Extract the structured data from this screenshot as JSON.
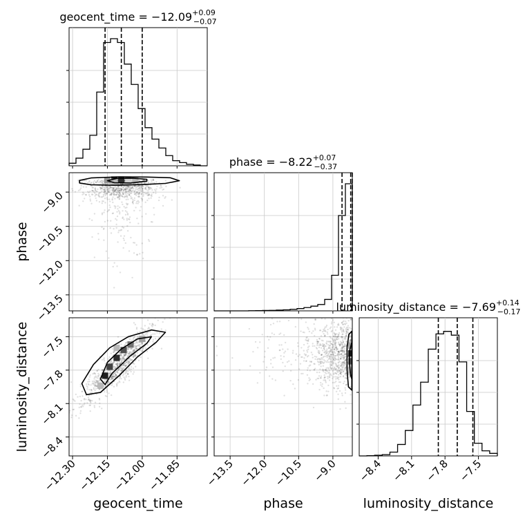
{
  "chart_data": {
    "type": "corner",
    "parameters": [
      {
        "name": "geocent_time",
        "axis_label": "geocent_time",
        "title": {
          "prefix": "geocent_time = ",
          "value": "−12.09",
          "upper": "+0.09",
          "lower": "−0.07"
        },
        "range": [
          -12.315,
          -11.72
        ],
        "ticks": [
          -12.3,
          -12.15,
          -12.0,
          -11.85
        ],
        "tick_labels": [
          "−12.30",
          "−12.15",
          "−12.00",
          "−11.85"
        ],
        "quantiles": [
          -12.16,
          -12.09,
          -12.0
        ],
        "hist": [
          0.02,
          0.06,
          0.13,
          0.24,
          0.58,
          0.97,
          1.0,
          0.97,
          0.8,
          0.64,
          0.45,
          0.3,
          0.21,
          0.14,
          0.08,
          0.04,
          0.025,
          0.012,
          0.006,
          0.0
        ]
      },
      {
        "name": "phase",
        "axis_label": "phase",
        "title": {
          "prefix": "phase = ",
          "value": "−8.22",
          "upper": "+0.07",
          "lower": "−0.37"
        },
        "range": [
          -14.2,
          -8.15
        ],
        "ticks": [
          -13.5,
          -12.0,
          -10.5,
          -9.0
        ],
        "tick_labels": [
          "−13.5",
          "−12.0",
          "−10.5",
          "−9.0"
        ],
        "quantiles": [
          -8.6,
          -8.22,
          -8.15
        ],
        "hist": [
          0.0,
          0.0,
          0.0,
          0.0,
          0.0,
          0.001,
          0.002,
          0.003,
          0.004,
          0.006,
          0.008,
          0.012,
          0.018,
          0.026,
          0.037,
          0.05,
          0.09,
          0.28,
          0.75,
          1.0
        ]
      },
      {
        "name": "luminosity_distance",
        "axis_label": "luminosity_distance",
        "title": {
          "prefix": "luminosity_distance = ",
          "value": "−7.69",
          "upper": "+0.14",
          "lower": "−0.17"
        },
        "range": [
          -8.57,
          -7.33
        ],
        "ticks": [
          -8.4,
          -8.1,
          -7.8,
          -7.5
        ],
        "tick_labels": [
          "−8.4",
          "−8.1",
          "−7.8",
          "−7.5"
        ],
        "quantiles": [
          -7.86,
          -7.69,
          -7.55
        ],
        "hist": [
          0.0,
          0.002,
          0.005,
          0.01,
          0.03,
          0.09,
          0.2,
          0.4,
          0.58,
          0.84,
          0.96,
          0.98,
          0.95,
          0.74,
          0.35,
          0.1,
          0.04,
          0.02
        ]
      }
    ],
    "contours": [
      {
        "row": 1,
        "col": 0,
        "x": "geocent_time",
        "y": "phase",
        "outer": [
          [
            -12.27,
            -8.49
          ],
          [
            -12.22,
            -8.38
          ],
          [
            -12.1,
            -8.33
          ],
          [
            -11.98,
            -8.34
          ],
          [
            -11.88,
            -8.37
          ],
          [
            -11.84,
            -8.5
          ],
          [
            -11.9,
            -8.62
          ],
          [
            -12.0,
            -8.67
          ],
          [
            -12.12,
            -8.7
          ],
          [
            -12.22,
            -8.68
          ],
          [
            -12.27,
            -8.6
          ]
        ],
        "inner": [
          [
            -12.15,
            -8.5
          ],
          [
            -12.11,
            -8.4
          ],
          [
            -12.04,
            -8.39
          ],
          [
            -11.98,
            -8.44
          ],
          [
            -11.98,
            -8.52
          ],
          [
            -12.05,
            -8.6
          ],
          [
            -12.12,
            -8.59
          ]
        ],
        "bins": [
          [
            -12.12,
            -8.45,
            1.0
          ],
          [
            -12.09,
            -8.45,
            0.9
          ],
          [
            -12.06,
            -8.45,
            0.6
          ],
          [
            -12.03,
            -8.47,
            0.3
          ],
          [
            -12.15,
            -8.47,
            0.45
          ],
          [
            -12.12,
            -8.55,
            0.3
          ],
          [
            -12.06,
            -8.55,
            0.2
          ]
        ]
      },
      {
        "row": 2,
        "col": 0,
        "x": "geocent_time",
        "y": "luminosity_distance",
        "outer": [
          [
            -12.26,
            -7.92
          ],
          [
            -12.21,
            -7.75
          ],
          [
            -12.14,
            -7.6
          ],
          [
            -12.06,
            -7.5
          ],
          [
            -11.96,
            -7.44
          ],
          [
            -11.9,
            -7.46
          ],
          [
            -11.94,
            -7.55
          ],
          [
            -12.02,
            -7.68
          ],
          [
            -12.1,
            -7.85
          ],
          [
            -12.18,
            -8.0
          ],
          [
            -12.24,
            -8.02
          ]
        ],
        "inner": [
          [
            -12.18,
            -7.88
          ],
          [
            -12.15,
            -7.73
          ],
          [
            -12.09,
            -7.61
          ],
          [
            -12.02,
            -7.52
          ],
          [
            -11.96,
            -7.5
          ],
          [
            -11.98,
            -7.56
          ],
          [
            -12.05,
            -7.67
          ],
          [
            -12.13,
            -7.83
          ],
          [
            -12.16,
            -7.93
          ]
        ],
        "bins": [
          [
            -12.16,
            -7.85,
            0.95
          ],
          [
            -12.14,
            -7.77,
            0.8
          ],
          [
            -12.11,
            -7.69,
            0.9
          ],
          [
            -12.08,
            -7.62,
            0.75
          ],
          [
            -12.05,
            -7.57,
            0.6
          ],
          [
            -12.0,
            -7.52,
            0.4
          ],
          [
            -12.11,
            -7.6,
            0.3
          ],
          [
            -12.18,
            -7.94,
            0.3
          ]
        ]
      },
      {
        "row": 2,
        "col": 1,
        "x": "phase",
        "y": "luminosity_distance",
        "outer": [
          [
            -8.17,
            -7.45
          ],
          [
            -8.3,
            -7.48
          ],
          [
            -8.38,
            -7.6
          ],
          [
            -8.38,
            -7.8
          ],
          [
            -8.32,
            -7.95
          ],
          [
            -8.17,
            -7.98
          ]
        ],
        "inner": [
          [
            -8.17,
            -7.55
          ],
          [
            -8.26,
            -7.62
          ],
          [
            -8.27,
            -7.75
          ],
          [
            -8.22,
            -7.85
          ],
          [
            -8.17,
            -7.88
          ]
        ],
        "bins": [
          [
            -8.19,
            -7.65,
            0.95
          ],
          [
            -8.19,
            -7.72,
            0.7
          ],
          [
            -8.19,
            -7.58,
            0.4
          ],
          [
            -8.23,
            -7.8,
            0.3
          ]
        ]
      }
    ]
  }
}
